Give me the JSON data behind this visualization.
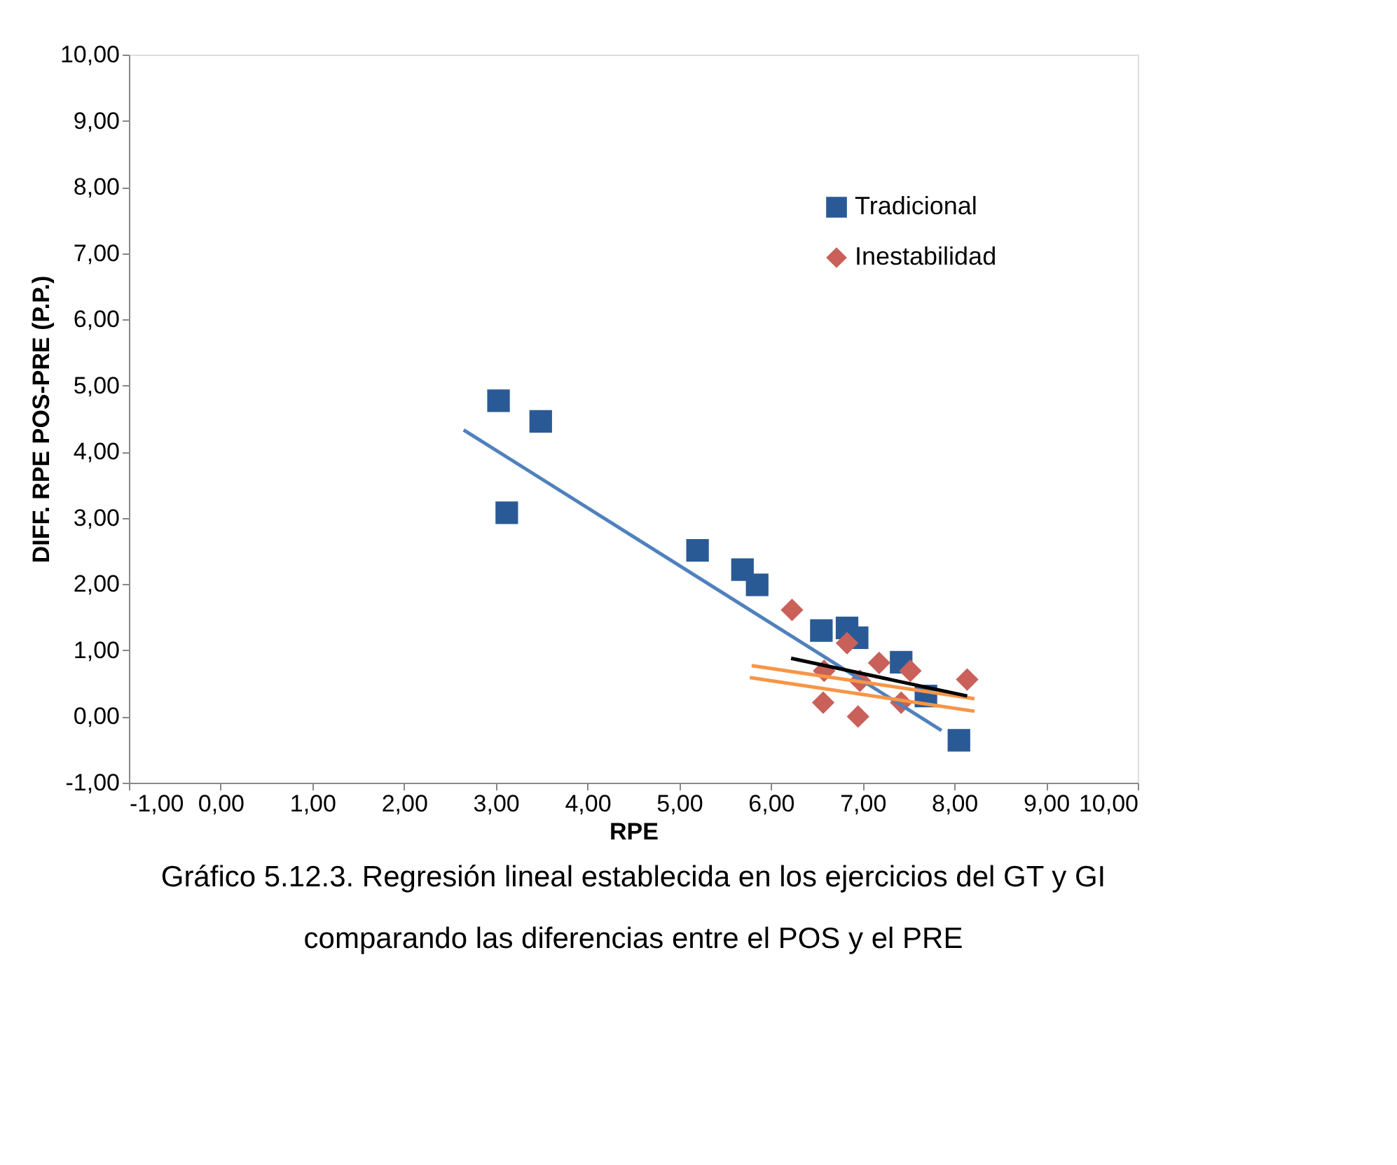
{
  "chart_data": {
    "type": "scatter",
    "xlabel": "RPE",
    "ylabel": "DIFF. RPE POS-PRE (P.P.)",
    "annotations": [
      "Gráfico 5.12.3. Regresión lineal establecida en los ejercicios del GT y GI",
      "comparando las diferencias entre el POS y el PRE"
    ],
    "xlim": [
      -1,
      10
    ],
    "ylim": [
      -1,
      10
    ],
    "xticks": [
      {
        "value": -1,
        "label": "-1,00"
      },
      {
        "value": 0,
        "label": "0,00"
      },
      {
        "value": 1,
        "label": "1,00"
      },
      {
        "value": 2,
        "label": "2,00"
      },
      {
        "value": 3,
        "label": "3,00"
      },
      {
        "value": 4,
        "label": "4,00"
      },
      {
        "value": 5,
        "label": "5,00"
      },
      {
        "value": 6,
        "label": "6,00"
      },
      {
        "value": 7,
        "label": "7,00"
      },
      {
        "value": 8,
        "label": "8,00"
      },
      {
        "value": 9,
        "label": "9,00"
      },
      {
        "value": 10,
        "label": "10,00"
      }
    ],
    "yticks": [
      {
        "value": -1,
        "label": "-1,00"
      },
      {
        "value": 0,
        "label": "0,00"
      },
      {
        "value": 1,
        "label": "1,00"
      },
      {
        "value": 2,
        "label": "2,00"
      },
      {
        "value": 3,
        "label": "3,00"
      },
      {
        "value": 4,
        "label": "4,00"
      },
      {
        "value": 5,
        "label": "5,00"
      },
      {
        "value": 6,
        "label": "6,00"
      },
      {
        "value": 7,
        "label": "7,00"
      },
      {
        "value": 8,
        "label": "8,00"
      },
      {
        "value": 9,
        "label": "9,00"
      },
      {
        "value": 10,
        "label": "10,00"
      }
    ],
    "grid": false,
    "legend": "top right",
    "series": [
      {
        "name": "Tradicional",
        "color": "#2a5a96",
        "marker": "square",
        "x": [
          3.03,
          3.49,
          3.12,
          5.2,
          5.69,
          5.85,
          6.55,
          6.83,
          6.94,
          7.42,
          7.69,
          8.05
        ],
        "values": [
          4.77,
          4.46,
          3.08,
          2.51,
          2.22,
          1.99,
          1.3,
          1.34,
          1.19,
          0.82,
          0.31,
          -0.36
        ]
      },
      {
        "name": "Inestabilidad",
        "color": "#c9605a",
        "marker": "diamond",
        "x": [
          6.23,
          6.58,
          6.57,
          6.83,
          6.95,
          7.18,
          7.52,
          8.14,
          6.97,
          7.42
        ],
        "values": [
          1.61,
          0.69,
          0.21,
          1.11,
          0.0,
          0.81,
          0.69,
          0.56,
          0.54,
          0.21
        ]
      },
      {
        "type": "line",
        "color": "#4f81bd",
        "x": [
          2.65,
          7.86
        ],
        "values": [
          4.33,
          -0.21
        ]
      },
      {
        "type": "line",
        "color": "#f79646",
        "x": [
          5.77,
          8.22
        ],
        "values": [
          0.59,
          0.08
        ]
      },
      {
        "type": "line",
        "color": "#f79646",
        "x": [
          5.79,
          8.22
        ],
        "values": [
          0.77,
          0.27
        ]
      },
      {
        "type": "line",
        "color": "#000000",
        "x": [
          6.22,
          8.14
        ],
        "values": [
          0.88,
          0.31
        ]
      }
    ]
  }
}
